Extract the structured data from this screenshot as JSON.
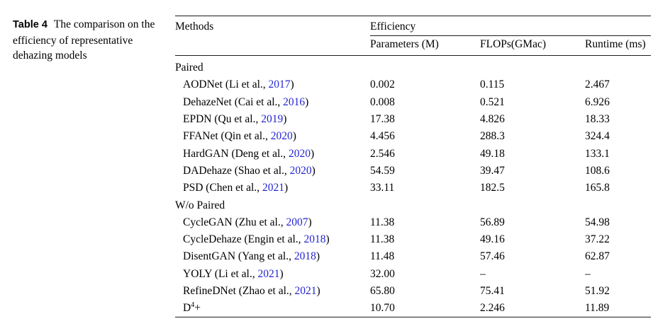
{
  "caption": {
    "label": "Table 4",
    "text": "The comparison on the efficiency of representative dehazing models"
  },
  "link_color": "#2424d2",
  "table": {
    "methods_header": "Methods",
    "group_header": "Efficiency",
    "columns": [
      "Parameters (M)",
      "FLOPs(GMac)",
      "Runtime (ms)"
    ],
    "missing_marker": "–",
    "rows": [
      {
        "type": "section",
        "label": "Paired"
      },
      {
        "type": "method",
        "pre": "AODNet (Li et al., ",
        "year": "2017",
        "post": ")",
        "params": "0.002",
        "flops": "0.115",
        "runtime": "2.467"
      },
      {
        "type": "method",
        "pre": "DehazeNet (Cai et al., ",
        "year": "2016",
        "post": ")",
        "params": "0.008",
        "flops": "0.521",
        "runtime": "6.926"
      },
      {
        "type": "method",
        "pre": "EPDN (Qu et al., ",
        "year": "2019",
        "post": ")",
        "params": "17.38",
        "flops": "4.826",
        "runtime": "18.33"
      },
      {
        "type": "method",
        "pre": "FFANet (Qin et al., ",
        "year": "2020",
        "post": ")",
        "params": "4.456",
        "flops": "288.3",
        "runtime": "324.4"
      },
      {
        "type": "method",
        "pre": "HardGAN (Deng et al., ",
        "year": "2020",
        "post": ")",
        "params": "2.546",
        "flops": "49.18",
        "runtime": "133.1"
      },
      {
        "type": "method",
        "pre": "DADehaze (Shao et al., ",
        "year": "2020",
        "post": ")",
        "params": "54.59",
        "flops": "39.47",
        "runtime": "108.6"
      },
      {
        "type": "method",
        "pre": "PSD (Chen et al., ",
        "year": "2021",
        "post": ")",
        "params": "33.11",
        "flops": "182.5",
        "runtime": "165.8"
      },
      {
        "type": "section",
        "label": "W/o Paired"
      },
      {
        "type": "method",
        "pre": "CycleGAN (Zhu et al., ",
        "year": "2007",
        "post": ")",
        "params": "11.38",
        "flops": "56.89",
        "runtime": "54.98"
      },
      {
        "type": "method",
        "pre": "CycleDehaze (Engin et al., ",
        "year": "2018",
        "post": ")",
        "params": "11.38",
        "flops": "49.16",
        "runtime": "37.22"
      },
      {
        "type": "method",
        "pre": "DisentGAN (Yang et al., ",
        "year": "2018",
        "post": ")",
        "params": "11.48",
        "flops": "57.46",
        "runtime": "62.87"
      },
      {
        "type": "method",
        "pre": "YOLY (Li et al., ",
        "year": "2021",
        "post": ")",
        "params": "32.00",
        "flops": "–",
        "runtime": "–"
      },
      {
        "type": "method",
        "pre": "RefineDNet (Zhao et al., ",
        "year": "2021",
        "post": ")",
        "params": "65.80",
        "flops": "75.41",
        "runtime": "51.92"
      },
      {
        "type": "method",
        "pre": "D",
        "sup": "4",
        "post": "+",
        "params": "10.70",
        "flops": "2.246",
        "runtime": "11.89"
      }
    ]
  }
}
